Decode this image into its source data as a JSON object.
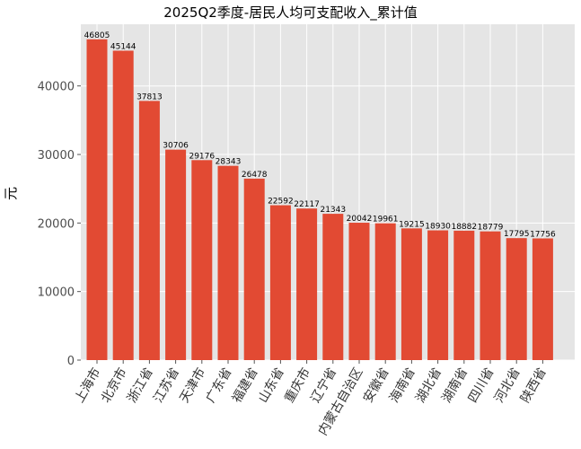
{
  "chart_data": {
    "type": "bar",
    "title": "2025Q2季度-居民人均可支配收入_累计值",
    "xlabel": "",
    "ylabel": "元",
    "ylim": [
      0,
      49000
    ],
    "yticks": [
      0,
      10000,
      20000,
      30000,
      40000
    ],
    "grid": true,
    "bar_color": "#E24A33",
    "background": "#E5E5E5",
    "categories": [
      "上海市",
      "北京市",
      "浙江省",
      "江苏省",
      "天津市",
      "广东省",
      "福建省",
      "山东省",
      "重庆市",
      "辽宁省",
      "内蒙古自治区",
      "安徽省",
      "海南省",
      "湖北省",
      "湖南省",
      "四川省",
      "河北省",
      "陕西省"
    ],
    "values": [
      46805,
      45144,
      37813,
      30706,
      29176,
      28343,
      26478,
      22592,
      22117,
      21343,
      20042,
      19961,
      19215,
      18930,
      18882,
      18779,
      17795,
      17756
    ]
  }
}
